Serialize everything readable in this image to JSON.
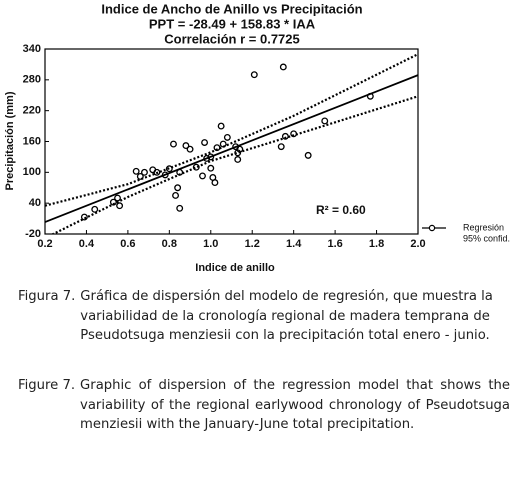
{
  "chart_data": {
    "type": "scatter",
    "title": [
      "Indice de Ancho de Anillo vs Precipitación",
      "PPT = -28.49 + 158.83 * IAA",
      "Correlación  r = 0.7725"
    ],
    "x_label": "Indice de anillo",
    "y_label": "Precipitación (mm)",
    "annotation": "R² = 0.60",
    "xlim": [
      0.2,
      2.0
    ],
    "xticks": [
      {
        "value": 0.2,
        "label": "0.2"
      },
      {
        "value": 0.4,
        "label": "0.4"
      },
      {
        "value": 0.6,
        "label": "0.6"
      },
      {
        "value": 0.8,
        "label": "0.8"
      },
      {
        "value": 1.0,
        "label": "1.0"
      },
      {
        "value": 1.2,
        "label": "1.2"
      },
      {
        "value": 1.4,
        "label": "1.4"
      },
      {
        "value": 1.6,
        "label": "1.6"
      },
      {
        "value": 1.8,
        "label": "1.8"
      },
      {
        "value": 2.0,
        "label": "2.0"
      }
    ],
    "ylim": [
      -20,
      340
    ],
    "yticks": [
      -20,
      40,
      100,
      160,
      220,
      280,
      340
    ],
    "color": "#000000",
    "points": {
      "x": [
        0.39,
        0.44,
        0.53,
        0.55,
        0.56,
        0.64,
        0.66,
        0.68,
        0.72,
        0.74,
        0.78,
        0.8,
        0.82,
        0.83,
        0.84,
        0.85,
        0.85,
        0.88,
        0.9,
        0.93,
        0.96,
        0.97,
        0.98,
        1.0,
        1.0,
        1.01,
        1.02,
        1.03,
        1.05,
        1.06,
        1.08,
        1.12,
        1.13,
        1.13,
        1.14,
        1.21,
        1.34,
        1.35,
        1.36,
        1.4,
        1.47,
        1.55,
        1.77
      ],
      "values": [
        13,
        28,
        42,
        50,
        35,
        102,
        92,
        100,
        105,
        100,
        95,
        107,
        155,
        55,
        70,
        30,
        100,
        152,
        145,
        110,
        93,
        158,
        127,
        130,
        108,
        90,
        80,
        148,
        190,
        155,
        168,
        150,
        138,
        125,
        145,
        290,
        150,
        305,
        170,
        175,
        133,
        200,
        248
      ]
    },
    "regression": {
      "name": "Regresión",
      "x": [
        0.2,
        2.0
      ],
      "values": [
        3.28,
        289.17
      ]
    },
    "confidence": {
      "name": "95% confid.",
      "x": [
        0.2,
        0.6,
        1.0,
        1.4,
        2.0
      ],
      "upper": [
        35,
        77,
        139,
        210,
        330
      ],
      "lower": [
        -28,
        52,
        122,
        172,
        248
      ]
    }
  },
  "captions": {
    "es": {
      "label": "Figura 7.",
      "text": "Gráfica de dispersión del modelo de regresión, que muestra la variabilidad de la cronología regional de madera temprana de Pseudotsuga menziesii con la precipitación total enero - junio."
    },
    "en": {
      "label": "Figure 7.",
      "text": "Graphic of dispersion of the regression model that shows the variability of the regional earlywood chronology of Pseudotsuga menziesii with the January-June total precipitation."
    }
  }
}
